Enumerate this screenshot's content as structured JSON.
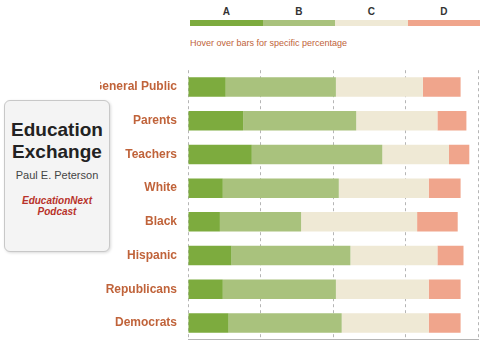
{
  "logo": {
    "title_lines": [
      "Education",
      "Exchange"
    ],
    "byline": "Paul E. Peterson",
    "label": "EducationNext Podcast"
  },
  "chart_data": {
    "type": "bar",
    "orientation": "horizontal",
    "stacked": true,
    "subtitle": "Hover over bars for specific percentage",
    "categories": [
      "General Public",
      "Parents",
      "Teachers",
      "White",
      "Black",
      "Hispanic",
      "Republicans",
      "Democrats"
    ],
    "series": [
      {
        "name": "A",
        "color": "#7dab3e",
        "values": [
          13,
          19,
          22,
          12,
          11,
          15,
          12,
          14
        ]
      },
      {
        "name": "B",
        "color": "#a9c27d",
        "values": [
          38,
          39,
          45,
          40,
          28,
          41,
          39,
          39
        ]
      },
      {
        "name": "C",
        "color": "#efe9d5",
        "values": [
          30,
          28,
          23,
          31,
          40,
          30,
          32,
          30
        ]
      },
      {
        "name": "D",
        "color": "#f0a58c",
        "values": [
          13,
          10,
          7,
          11,
          14,
          9,
          11,
          11
        ]
      }
    ],
    "xlim": [
      0,
      100
    ],
    "xticks": [
      0,
      25,
      50,
      75,
      100
    ],
    "grid": true,
    "legend": "top",
    "tick_labels": "y"
  }
}
